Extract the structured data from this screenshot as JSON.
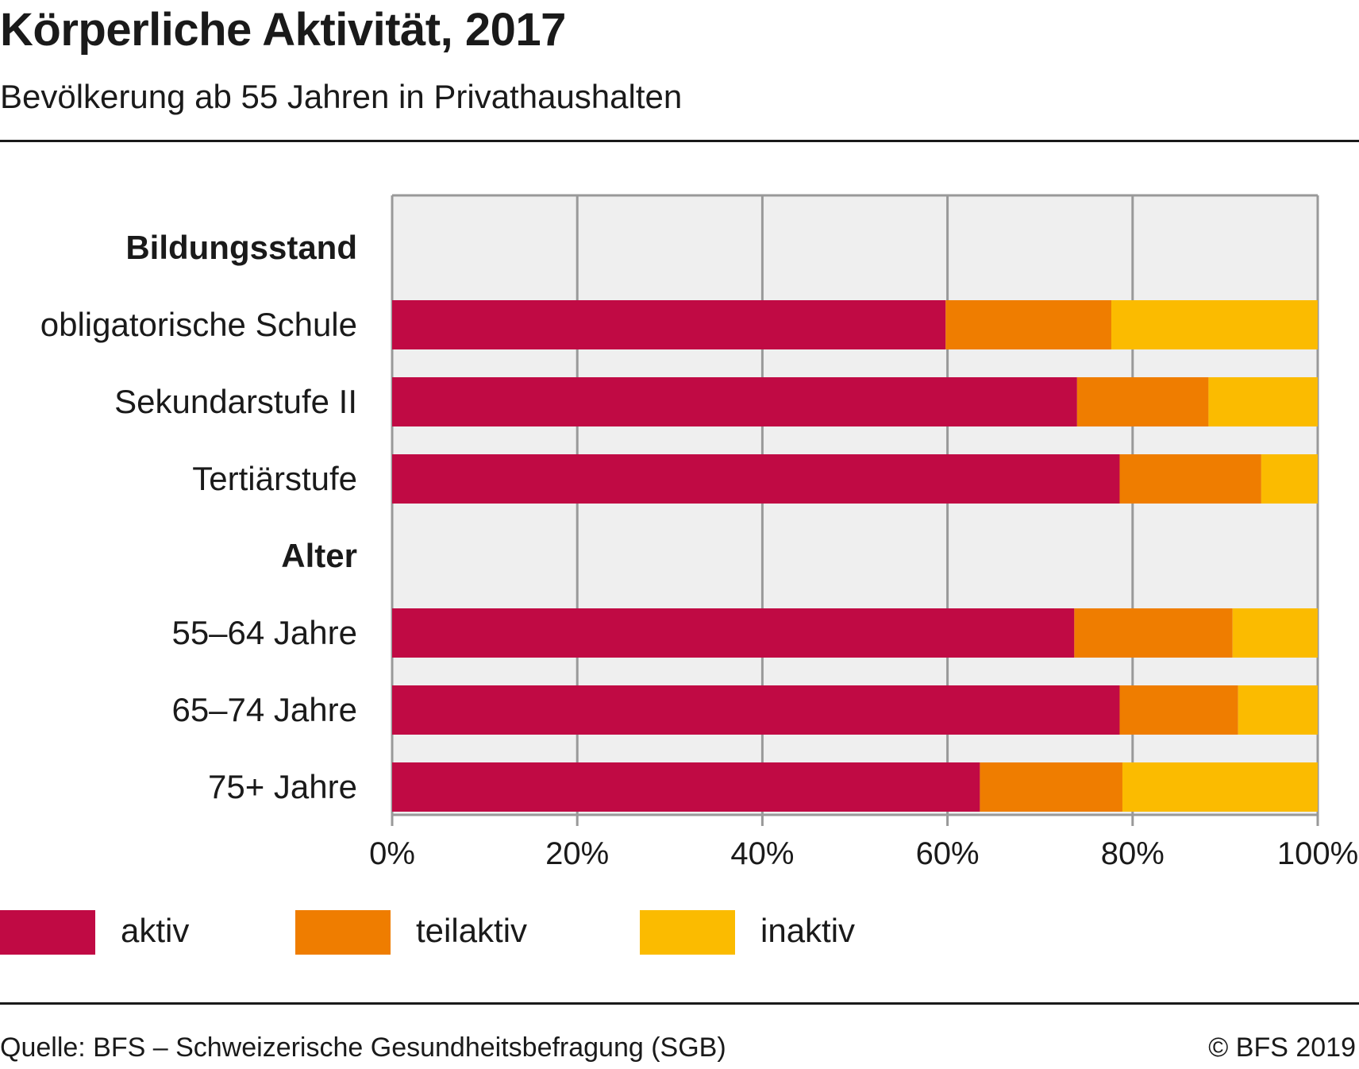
{
  "header": {
    "title": "Körperliche Aktivität, 2017",
    "subtitle": "Bevölkerung ab 55 Jahren in Privathaushalten"
  },
  "chart_data": {
    "type": "bar",
    "orientation": "horizontal",
    "stacked": true,
    "rows": [
      {
        "label": "Bildungsstand",
        "is_group_header": true
      },
      {
        "label": "obligatorische Schule",
        "values": [
          59.8,
          17.9,
          22.3
        ]
      },
      {
        "label": "Sekundarstufe II",
        "values": [
          74.0,
          14.2,
          11.8
        ]
      },
      {
        "label": "Tertiärstufe",
        "values": [
          78.6,
          15.3,
          6.1
        ]
      },
      {
        "label": "Alter",
        "is_group_header": true
      },
      {
        "label": "55–64 Jahre",
        "values": [
          73.7,
          17.1,
          9.2
        ]
      },
      {
        "label": "65–74 Jahre",
        "values": [
          78.6,
          12.8,
          8.6
        ]
      },
      {
        "label": "75+ Jahre",
        "values": [
          63.5,
          15.4,
          21.1
        ]
      }
    ],
    "series": [
      {
        "name": "aktiv",
        "color": "#c00a44"
      },
      {
        "name": "teilaktiv",
        "color": "#ef7d00"
      },
      {
        "name": "inaktiv",
        "color": "#fbbb00"
      }
    ],
    "xlim": [
      0,
      100
    ],
    "xticks": [
      "0%",
      "20%",
      "40%",
      "60%",
      "80%",
      "100%"
    ],
    "grid": true,
    "legend_position": "bottom",
    "plot_background": "#efefef",
    "grid_color": "#999999"
  },
  "footer": {
    "source": "Quelle: BFS – Schweizerische Gesundheitsbefragung (SGB)",
    "copyright": "© BFS 2019"
  }
}
